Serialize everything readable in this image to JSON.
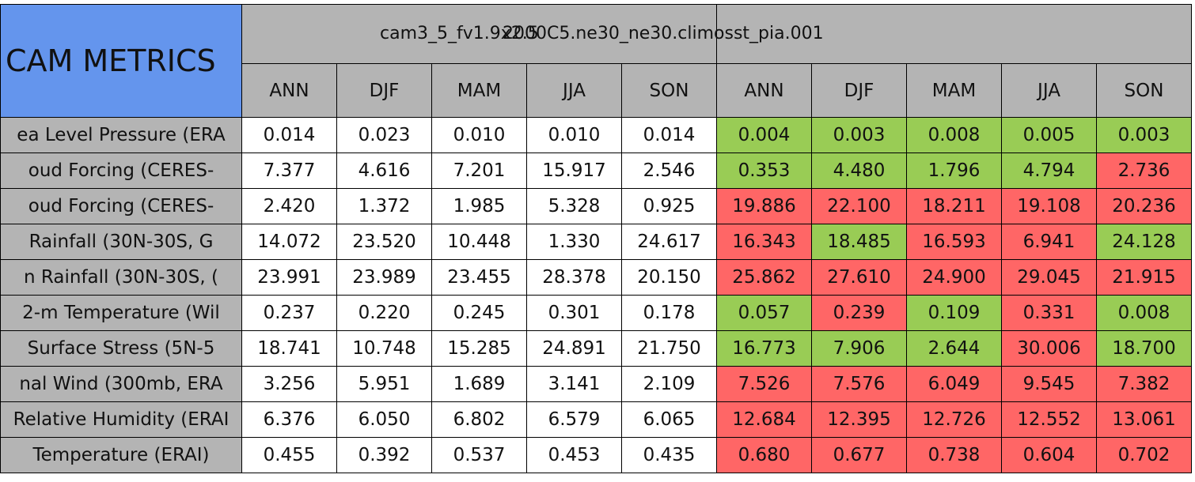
{
  "table": {
    "corner": "CAM METRICS",
    "groups": [
      "cam3_5_fv1.9x2.5",
      "2000C5.ne30_ne30.climosst_pia.001"
    ],
    "columns": [
      [
        "ANN",
        "DJF",
        "MAM",
        "JJA",
        "SON"
      ],
      [
        "ANN",
        "DJF",
        "MAM",
        "JJA",
        "SON"
      ]
    ],
    "colors": {
      "good": "#99cc55",
      "bad": "#ff6666",
      "none": "#ffffff",
      "header": "#b4b4b4",
      "corner": "#6495ed"
    },
    "rows": [
      {
        "label": "ea Level Pressure (ERA",
        "values": [
          "0.014",
          "0.023",
          "0.010",
          "0.010",
          "0.014",
          "0.004",
          "0.003",
          "0.008",
          "0.005",
          "0.003"
        ],
        "status": [
          "none",
          "none",
          "none",
          "none",
          "none",
          "good",
          "good",
          "good",
          "good",
          "good"
        ]
      },
      {
        "label": "oud Forcing (CERES-",
        "values": [
          "7.377",
          "4.616",
          "7.201",
          "15.917",
          "2.546",
          "0.353",
          "4.480",
          "1.796",
          "4.794",
          "2.736"
        ],
        "status": [
          "none",
          "none",
          "none",
          "none",
          "none",
          "good",
          "good",
          "good",
          "good",
          "bad"
        ]
      },
      {
        "label": "oud Forcing (CERES-",
        "values": [
          "2.420",
          "1.372",
          "1.985",
          "5.328",
          "0.925",
          "19.886",
          "22.100",
          "18.211",
          "19.108",
          "20.236"
        ],
        "status": [
          "none",
          "none",
          "none",
          "none",
          "none",
          "bad",
          "bad",
          "bad",
          "bad",
          "bad"
        ]
      },
      {
        "label": "Rainfall (30N-30S, G",
        "values": [
          "14.072",
          "23.520",
          "10.448",
          "1.330",
          "24.617",
          "16.343",
          "18.485",
          "16.593",
          "6.941",
          "24.128"
        ],
        "status": [
          "none",
          "none",
          "none",
          "none",
          "none",
          "bad",
          "good",
          "bad",
          "bad",
          "good"
        ]
      },
      {
        "label": "n Rainfall (30N-30S, (",
        "values": [
          "23.991",
          "23.989",
          "23.455",
          "28.378",
          "20.150",
          "25.862",
          "27.610",
          "24.900",
          "29.045",
          "21.915"
        ],
        "status": [
          "none",
          "none",
          "none",
          "none",
          "none",
          "bad",
          "bad",
          "bad",
          "bad",
          "bad"
        ]
      },
      {
        "label": "2-m Temperature (Wil",
        "values": [
          "0.237",
          "0.220",
          "0.245",
          "0.301",
          "0.178",
          "0.057",
          "0.239",
          "0.109",
          "0.331",
          "0.008"
        ],
        "status": [
          "none",
          "none",
          "none",
          "none",
          "none",
          "good",
          "bad",
          "good",
          "bad",
          "good"
        ]
      },
      {
        "label": "Surface Stress (5N-5",
        "values": [
          "18.741",
          "10.748",
          "15.285",
          "24.891",
          "21.750",
          "16.773",
          "7.906",
          "2.644",
          "30.006",
          "18.700"
        ],
        "status": [
          "none",
          "none",
          "none",
          "none",
          "none",
          "good",
          "good",
          "good",
          "bad",
          "good"
        ]
      },
      {
        "label": "nal Wind (300mb, ERA",
        "values": [
          "3.256",
          "5.951",
          "1.689",
          "3.141",
          "2.109",
          "7.526",
          "7.576",
          "6.049",
          "9.545",
          "7.382"
        ],
        "status": [
          "none",
          "none",
          "none",
          "none",
          "none",
          "bad",
          "bad",
          "bad",
          "bad",
          "bad"
        ]
      },
      {
        "label": "Relative Humidity (ERAI",
        "values": [
          "6.376",
          "6.050",
          "6.802",
          "6.579",
          "6.065",
          "12.684",
          "12.395",
          "12.726",
          "12.552",
          "13.061"
        ],
        "status": [
          "none",
          "none",
          "none",
          "none",
          "none",
          "bad",
          "bad",
          "bad",
          "bad",
          "bad"
        ]
      },
      {
        "label": "Temperature (ERAI)",
        "values": [
          "0.455",
          "0.392",
          "0.537",
          "0.453",
          "0.435",
          "0.680",
          "0.677",
          "0.738",
          "0.604",
          "0.702"
        ],
        "status": [
          "none",
          "none",
          "none",
          "none",
          "none",
          "bad",
          "bad",
          "bad",
          "bad",
          "bad"
        ]
      }
    ]
  }
}
